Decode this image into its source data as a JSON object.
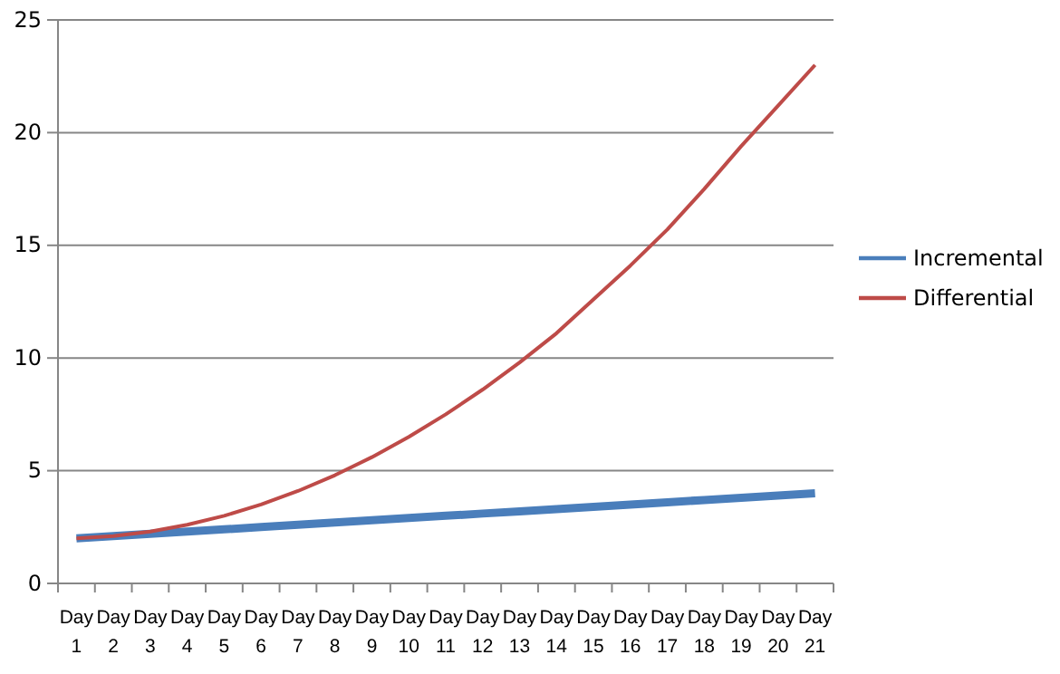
{
  "chart_data": {
    "type": "line",
    "categories": [
      "Day 1",
      "Day 2",
      "Day 3",
      "Day 4",
      "Day 5",
      "Day 6",
      "Day 7",
      "Day 8",
      "Day 9",
      "Day 10",
      "Day 11",
      "Day 12",
      "Day 13",
      "Day 14",
      "Day 15",
      "Day 16",
      "Day 17",
      "Day 18",
      "Day 19",
      "Day 20",
      "Day 21"
    ],
    "series": [
      {
        "name": "Incremental",
        "color": "#4a7ebb",
        "values": [
          2,
          2.1,
          2.2,
          2.3,
          2.4,
          2.5,
          2.6,
          2.7,
          2.8,
          2.9,
          3.0,
          3.1,
          3.2,
          3.3,
          3.4,
          3.5,
          3.6,
          3.7,
          3.8,
          3.9,
          4.0
        ]
      },
      {
        "name": "Differential",
        "color": "#be4b48",
        "values": [
          2,
          2.1,
          2.3,
          2.6,
          3.0,
          3.5,
          4.1,
          4.8,
          5.6,
          6.5,
          7.5,
          8.6,
          9.8,
          11.1,
          12.6,
          14.1,
          15.7,
          17.5,
          19.4,
          21.2,
          23.0
        ]
      }
    ],
    "ylim": [
      0,
      25
    ],
    "yticks": [
      0,
      5,
      10,
      15,
      20,
      25
    ],
    "grid": "y",
    "legend": "right",
    "marker": "none",
    "line_style": "solid"
  }
}
